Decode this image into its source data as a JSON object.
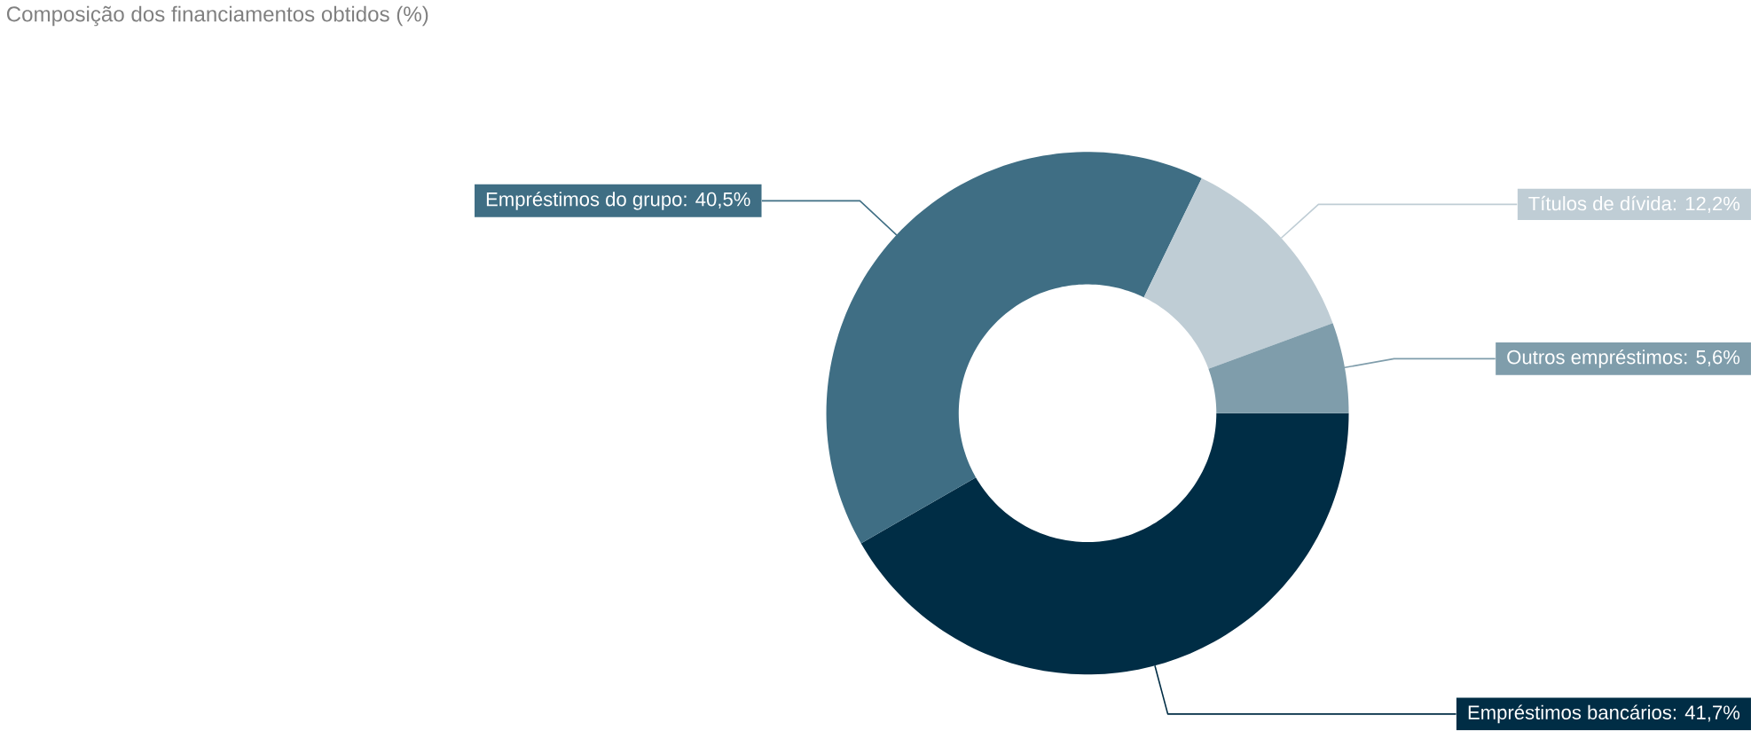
{
  "chart_data": {
    "type": "donut",
    "title": "Composição dos financiamentos obtidos (%)",
    "categories": [
      "Empréstimos bancários: 41,7%",
      "Empréstimos do grupo: 40,5%",
      "Títulos de dívida: 12,2%",
      "Outros empréstimos: 5,6%"
    ],
    "values": [
      41.7,
      40.5,
      12.2,
      5.6
    ],
    "colors": [
      "#002d45",
      "#3f6e84",
      "#bfcdd5",
      "#7f9dab"
    ]
  }
}
